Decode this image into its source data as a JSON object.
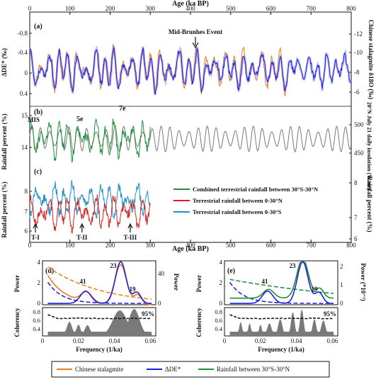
{
  "chart_data": [
    {
      "panel": "a",
      "type": "line",
      "top_xlabel": "Age (ka BP)",
      "x_ticks": [
        "0",
        "100",
        "200",
        "300",
        "400",
        "500",
        "600",
        "700",
        "800"
      ],
      "xlim": [
        0,
        800
      ],
      "ylabel_left": "ΔDE* (‰)",
      "ylabel_right": "Chinese stalagmite δ18O (‰)",
      "ylim_left_reversed": [
        0.6,
        -0.9
      ],
      "left_ticks": [
        "-0.8",
        "-0.4",
        "0",
        "0.4"
      ],
      "right_ticks": [
        "-12",
        "-10",
        "-8",
        "-6"
      ],
      "annotation": "Mid-Brunhes Event",
      "annotation_x": 430,
      "series": [
        {
          "name": "ΔDE*",
          "color": "#1f1fd6"
        },
        {
          "name": "Chinese stalagmite",
          "color": "#ef7d1f"
        }
      ],
      "label": "(a)"
    },
    {
      "panel": "b",
      "type": "line",
      "ylabel_left": "Rainfall percent (%)",
      "ylabel_right": "20°N July 21 daily insolation (W/m²)",
      "left_ticks": [
        "14",
        "15"
      ],
      "right_ticks": [
        "450",
        "500"
      ],
      "markers": [
        "MIS",
        "5e",
        "7e"
      ],
      "label": "(b)"
    },
    {
      "panel": "c",
      "type": "line",
      "ylabel_left": "Rainfall percent (%)",
      "ylabel_right": "Rainfall percent (%)",
      "left_ticks": [
        "6",
        "7",
        "8"
      ],
      "right_ticks": [
        "6",
        "7",
        "8"
      ],
      "terminations": [
        "T-I",
        "T-II",
        "T-III"
      ],
      "termination_x": [
        14,
        130,
        250
      ],
      "legend": [
        {
          "name": "Combined terrestrial rainfall between 30°S-30°N",
          "color": "#1f8f3a"
        },
        {
          "name": "Terrestrial rainfall between 0-30°N",
          "color": "#d42020"
        },
        {
          "name": "Terrestrial rainfall between 0-30°S",
          "color": "#1f8fc8"
        }
      ],
      "label": "(c)",
      "bottom_xlabel": "Age (ka BP)"
    },
    {
      "panel": "d",
      "type": "line",
      "ylabel_left": "Power",
      "ylabel_right": "Power",
      "left_ticks": [
        "0",
        "2",
        "4"
      ],
      "right_ticks": [
        "0",
        "40"
      ],
      "peaks": [
        "23",
        "41",
        "19"
      ],
      "coherency_label": "Coherency",
      "coherency_ticks": [
        "0.4",
        "0.6",
        "0.8"
      ],
      "confidence": "95%",
      "xlabel": "Frequency (1/ka)",
      "x_ticks": [
        "0",
        "0.02",
        "0.04",
        "0.06"
      ],
      "label": "(d)"
    },
    {
      "panel": "e",
      "type": "line",
      "ylabel_left": "Power",
      "ylabel_right": "Power (*10⁻¹)",
      "left_ticks": [
        "0",
        "2",
        "4"
      ],
      "right_ticks": [
        "0",
        "1",
        "2"
      ],
      "peaks": [
        "23",
        "41",
        "19"
      ],
      "coherency_label": "Coherency",
      "coherency_ticks": [
        "0.4",
        "0.6",
        "0.8"
      ],
      "confidence": "95%",
      "xlabel": "Frequency (1/ka)",
      "x_ticks": [
        "0",
        "0.02",
        "0.04",
        "0.06"
      ],
      "label": "(e)"
    }
  ],
  "bottom_legend": [
    {
      "name": "Chinese stalagmite",
      "color": "#ef7d1f"
    },
    {
      "name": "ΔDE*",
      "color": "#1f1fd6"
    },
    {
      "name": "Rainfall between 30°S-30°N",
      "color": "#1f8f3a"
    }
  ],
  "colors": {
    "blue": "#1f1fd6",
    "orange": "#ef7d1f",
    "green": "#1f8f3a",
    "red": "#d42020",
    "cyan": "#1f8fc8",
    "gray": "#777777"
  }
}
